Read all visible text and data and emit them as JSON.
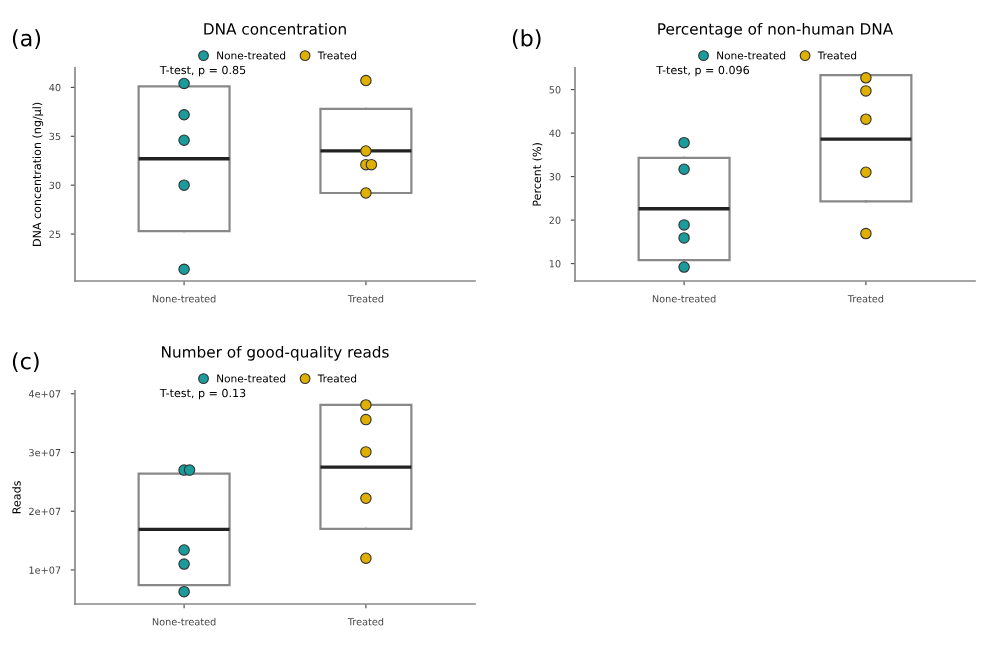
{
  "chart_data": [
    {
      "type": "box",
      "title": "DNA concentration",
      "ylabel": "DNA concentration (ng/µl)",
      "annotations": [
        "(a)",
        "T-test, p = 0.85"
      ],
      "categories": [
        "None-treated",
        "Treated"
      ],
      "legend": "top",
      "grid": false,
      "ylim": [
        20.2,
        42
      ],
      "yticks": [
        25,
        30,
        35,
        40
      ],
      "boxes": [
        {
          "low": 25.3,
          "q1": 25.3,
          "median": 32.7,
          "q3": 40.1,
          "high": 40.1
        },
        {
          "low": 29.2,
          "q1": 29.2,
          "median": 33.5,
          "q3": 37.8,
          "high": 37.8
        }
      ],
      "series": [
        {
          "type": "scatter",
          "name": "None-treated",
          "color": "#1a9c9c",
          "x": [
            "None-treated",
            "None-treated",
            "None-treated",
            "None-treated",
            "None-treated"
          ],
          "values": [
            40.4,
            37.2,
            34.6,
            30.0,
            21.4
          ]
        },
        {
          "type": "scatter",
          "name": "Treated",
          "color": "#e0b000",
          "x": [
            "Treated",
            "Treated",
            "Treated",
            "Treated",
            "Treated"
          ],
          "values": [
            40.7,
            33.5,
            32.1,
            32.1,
            29.2
          ]
        }
      ]
    },
    {
      "type": "box",
      "title": "Percentage of non-human DNA",
      "ylabel": "Percent (%)",
      "annotations": [
        "(b)",
        "T-test, p = 0.096"
      ],
      "categories": [
        "None-treated",
        "Treated"
      ],
      "legend": "top",
      "grid": false,
      "ylim": [
        6,
        55
      ],
      "yticks": [
        10,
        20,
        30,
        40,
        50
      ],
      "boxes": [
        {
          "low": 10.8,
          "q1": 10.8,
          "median": 22.6,
          "q3": 34.3,
          "high": 34.3
        },
        {
          "low": 24.3,
          "q1": 24.3,
          "median": 38.6,
          "q3": 53.3,
          "high": 53.3
        }
      ],
      "series": [
        {
          "type": "scatter",
          "name": "None-treated",
          "color": "#1a9c9c",
          "x": [
            "None-treated",
            "None-treated",
            "None-treated",
            "None-treated",
            "None-treated"
          ],
          "values": [
            37.8,
            31.7,
            18.9,
            15.9,
            9.2
          ]
        },
        {
          "type": "scatter",
          "name": "Treated",
          "color": "#e0b000",
          "x": [
            "Treated",
            "Treated",
            "Treated",
            "Treated",
            "Treated"
          ],
          "values": [
            52.7,
            49.7,
            43.2,
            31.0,
            16.9
          ]
        }
      ]
    },
    {
      "type": "box",
      "title": "Number of good-quality reads",
      "ylabel": "Reads",
      "annotations": [
        "(c)",
        "T-test, p = 0.13"
      ],
      "categories": [
        "None-treated",
        "Treated"
      ],
      "legend": "top",
      "grid": false,
      "ylim": [
        4200000,
        40500000
      ],
      "yticks": [
        {
          "value": 10000000,
          "label": "1e+07"
        },
        {
          "value": 20000000,
          "label": "2e+07"
        },
        {
          "value": 30000000,
          "label": "3e+07"
        },
        {
          "value": 40000000,
          "label": "4e+07"
        }
      ],
      "boxes": [
        {
          "low": 7400000,
          "q1": 7400000,
          "median": 16900000,
          "q3": 26400000,
          "high": 26400000
        },
        {
          "low": 17000000,
          "q1": 17000000,
          "median": 27500000,
          "q3": 38100000,
          "high": 38100000
        }
      ],
      "series": [
        {
          "type": "scatter",
          "name": "None-treated",
          "color": "#1a9c9c",
          "x": [
            "None-treated",
            "None-treated",
            "None-treated",
            "None-treated",
            "None-treated"
          ],
          "values": [
            27000000,
            27000000,
            13400000,
            11000000,
            6300000
          ]
        },
        {
          "type": "scatter",
          "name": "Treated",
          "color": "#e0b000",
          "x": [
            "Treated",
            "Treated",
            "Treated",
            "Treated",
            "Treated"
          ],
          "values": [
            38100000,
            35600000,
            30100000,
            22200000,
            12000000
          ]
        }
      ]
    }
  ]
}
